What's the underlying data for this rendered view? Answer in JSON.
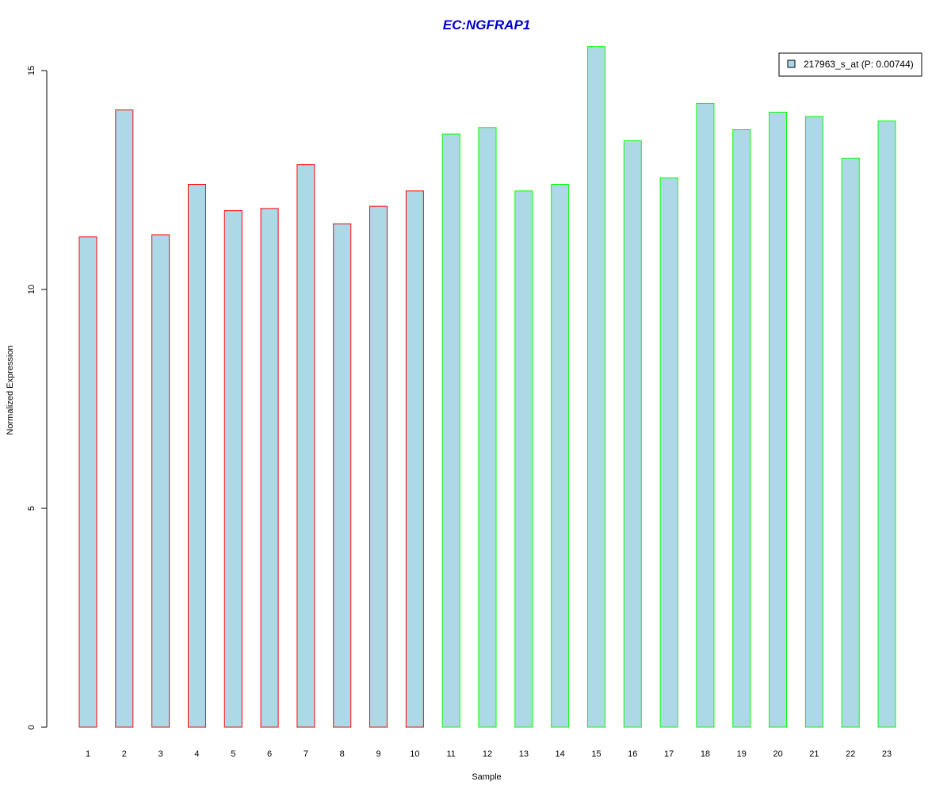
{
  "chart_data": {
    "type": "bar",
    "title": "EC:NGFRAP1",
    "xlabel": "Sample",
    "ylabel": "Normalized Expression",
    "categories": [
      "1",
      "2",
      "3",
      "4",
      "5",
      "6",
      "7",
      "8",
      "9",
      "10",
      "11",
      "12",
      "13",
      "14",
      "15",
      "16",
      "17",
      "18",
      "19",
      "20",
      "21",
      "22",
      "23"
    ],
    "series": [
      {
        "name": "217963_s_at (P: 0.00744)",
        "values": [
          11.2,
          14.1,
          11.25,
          12.4,
          11.8,
          11.85,
          12.85,
          11.5,
          11.9,
          12.25,
          13.55,
          13.7,
          12.25,
          12.4,
          15.55,
          13.4,
          12.55,
          14.25,
          13.65,
          14.05,
          13.95,
          13.0,
          13.85
        ]
      }
    ],
    "group_colors": [
      "red",
      "red",
      "red",
      "red",
      "red",
      "red",
      "red",
      "red",
      "red",
      "red",
      "green",
      "green",
      "green",
      "green",
      "green",
      "green",
      "green",
      "green",
      "green",
      "green",
      "green",
      "green",
      "green"
    ],
    "yticks": [
      0,
      5,
      10,
      15
    ],
    "ylim": [
      0,
      15.55
    ],
    "grid": false,
    "legend_position": "top-right",
    "colors": {
      "bar_fill": "#add8e6",
      "red": "#ff0000",
      "green": "#00ff00",
      "title": "#0000cd",
      "axis": "#000000"
    }
  }
}
